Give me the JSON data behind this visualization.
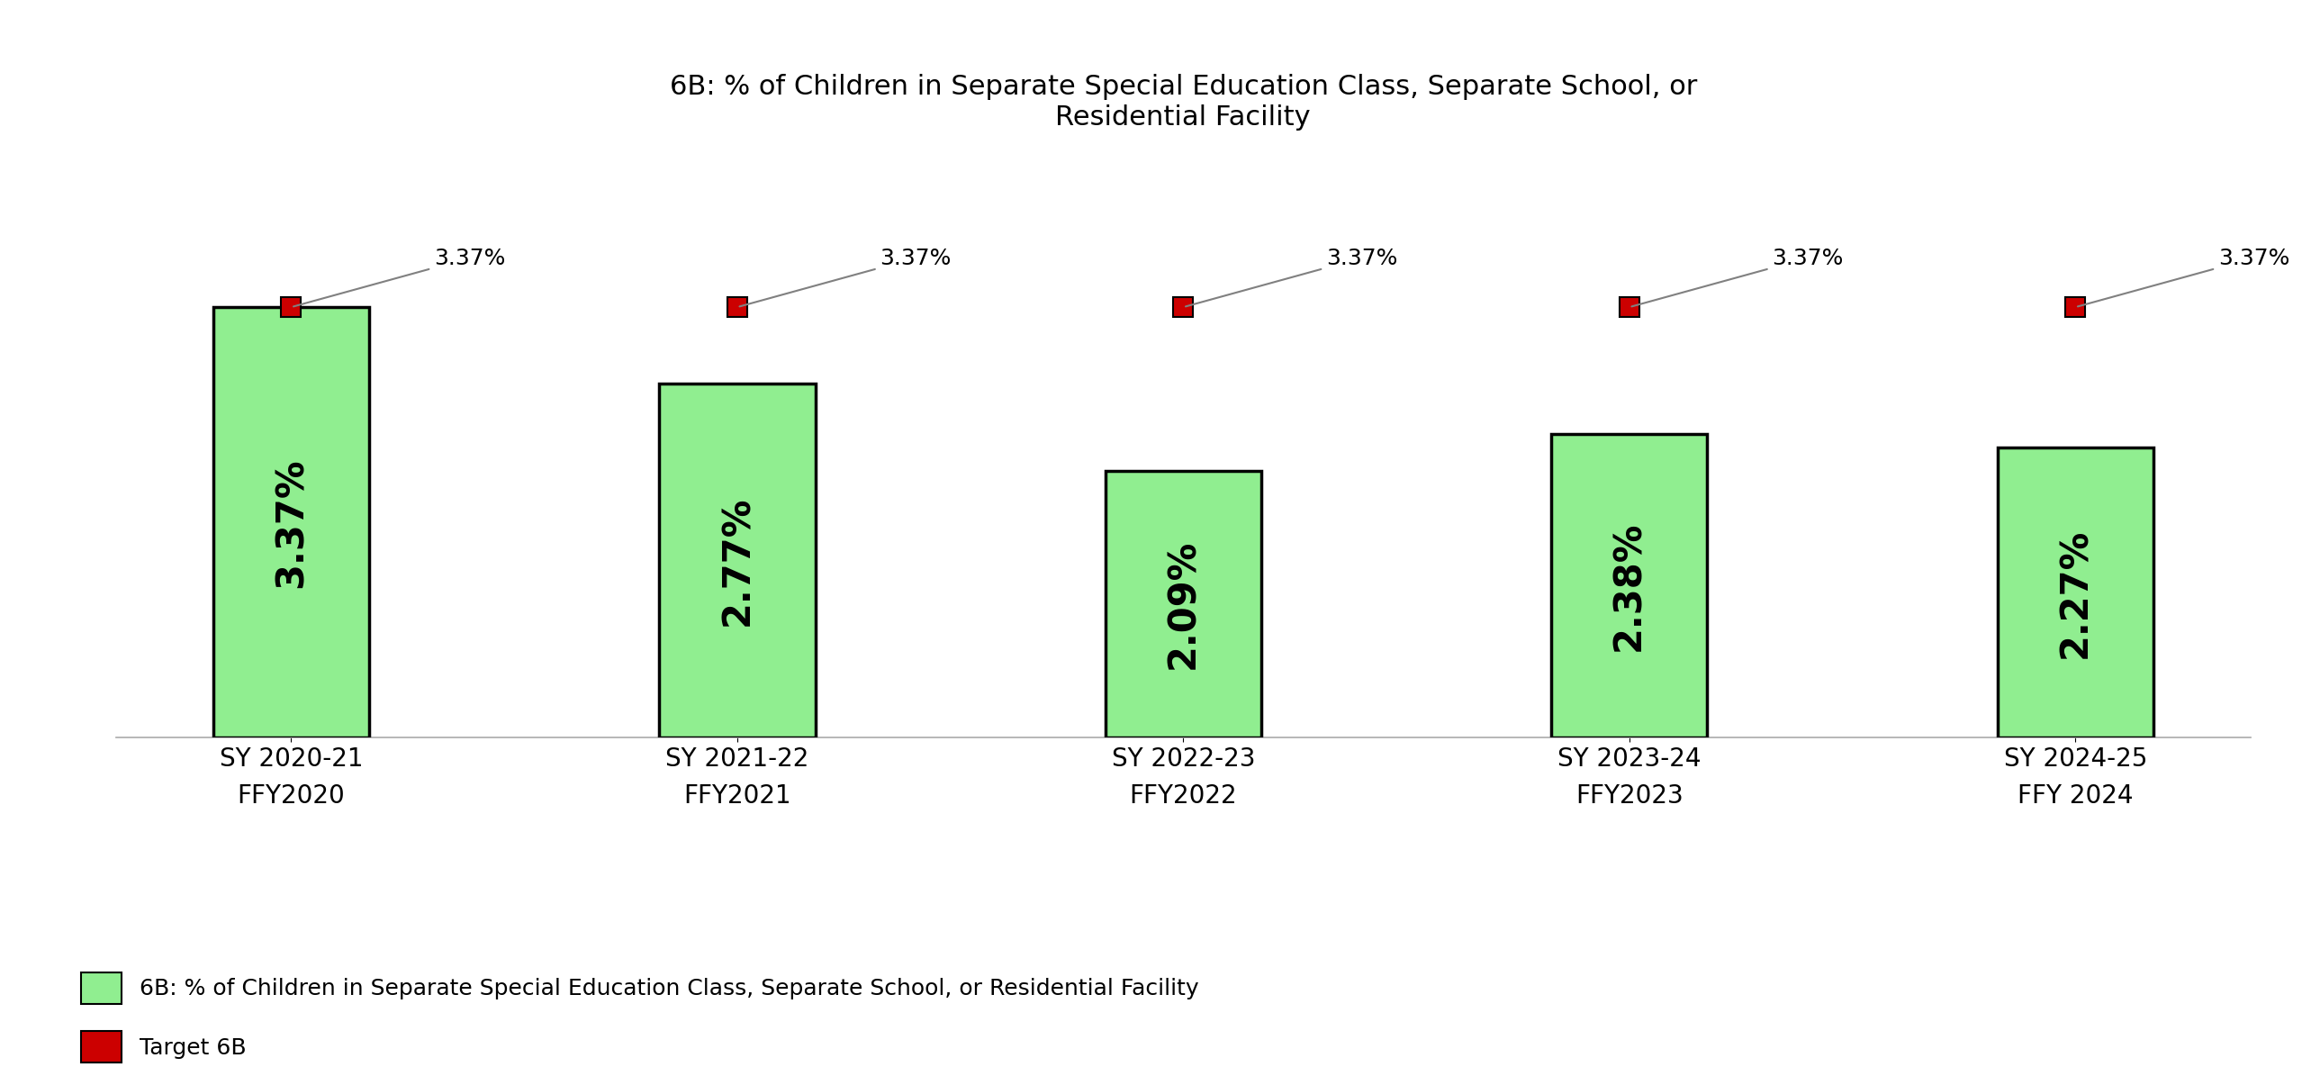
{
  "title": "6B: % of Children in Separate Special Education Class, Separate School, or\nResidential Facility",
  "categories": [
    "SY 2020-21\nFFY2020",
    "SY 2021-22\nFFY2021",
    "SY 2022-23\nFFY2022",
    "SY 2023-24\nFFY2023",
    "SY 2024-25\nFFY 2024"
  ],
  "bar_values": [
    3.37,
    2.77,
    2.09,
    2.38,
    2.27
  ],
  "bar_labels": [
    "3.37%",
    "2.77%",
    "2.09%",
    "2.38%",
    "2.27%"
  ],
  "target_value": 3.37,
  "target_label": "3.37%",
  "bar_color": "#90EE90",
  "bar_edgecolor": "#000000",
  "target_color": "#CC0000",
  "background_color": "#ffffff",
  "title_fontsize": 22,
  "bar_label_fontsize": 30,
  "tick_fontsize": 20,
  "legend_fontsize": 18,
  "target_annotation_fontsize": 18,
  "ylim": [
    0,
    4.5
  ],
  "legend_bar_label": "6B: % of Children in Separate Special Education Class, Separate School, or Residential Facility",
  "legend_target_label": "Target 6B"
}
